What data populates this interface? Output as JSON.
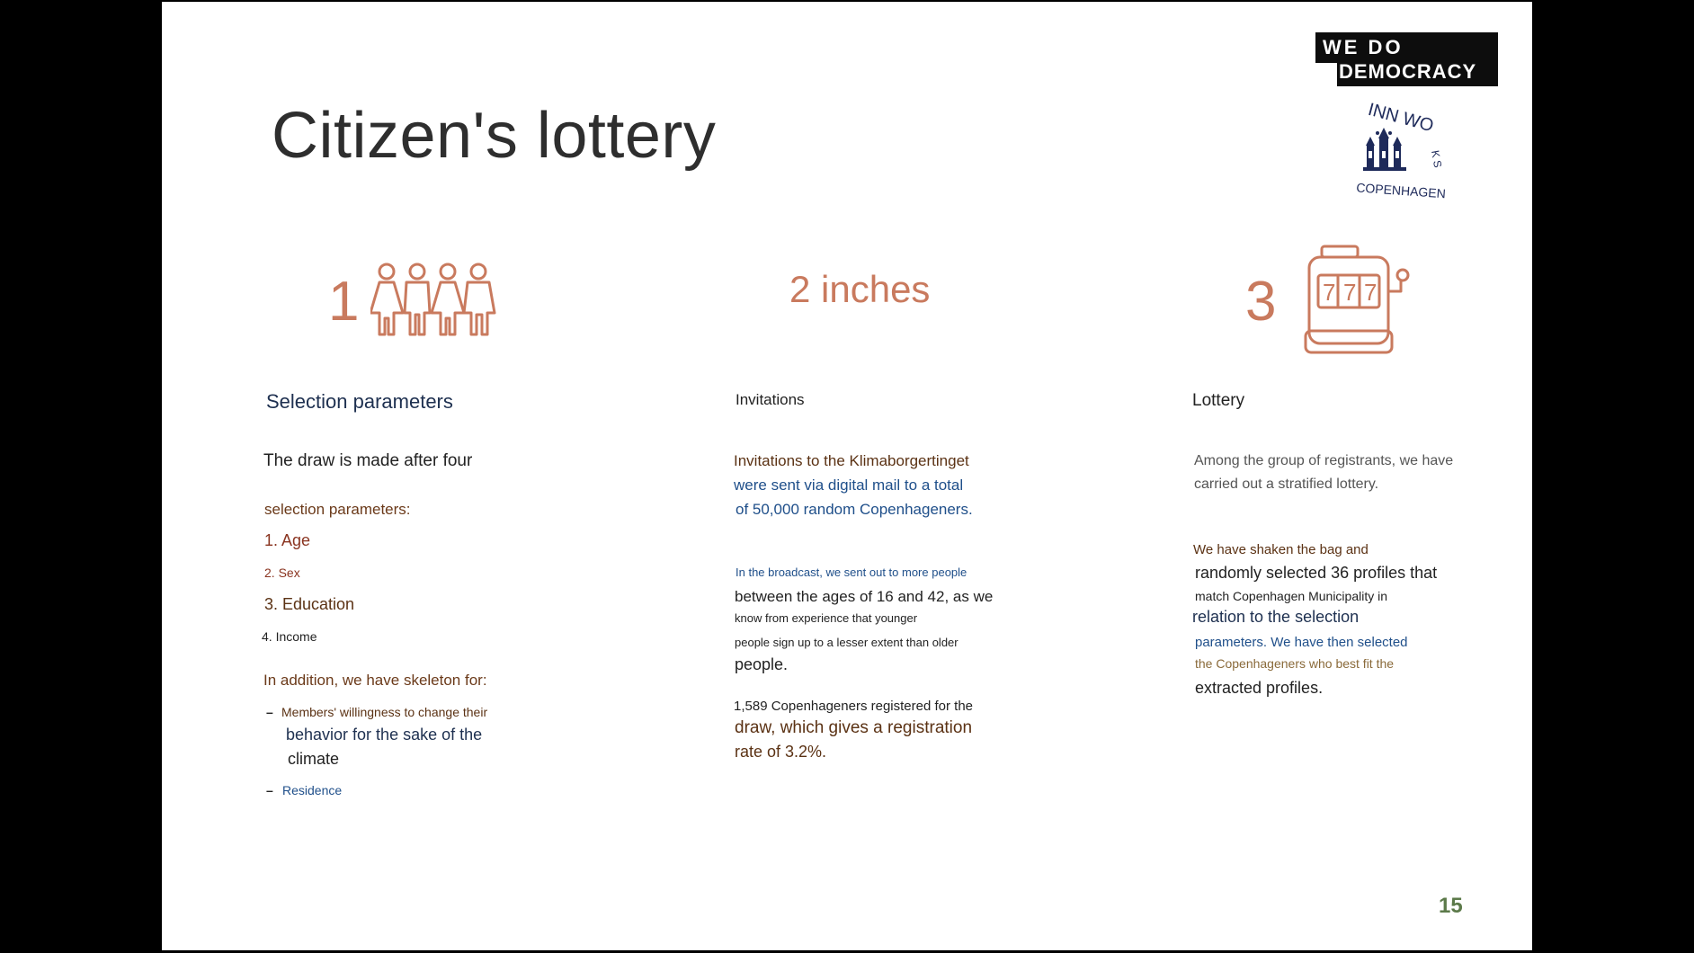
{
  "title": "Citizen's lottery",
  "logo": {
    "line1": "WE  DO",
    "line2": "DEMOCRACY",
    "seal_top": "INN WO",
    "seal_side": "K S",
    "seal_bottom": "COPENHAGEN"
  },
  "steps": {
    "one": {
      "number": "1",
      "icon": "people-group-icon"
    },
    "two": {
      "number": "2 inches"
    },
    "three": {
      "number": "3",
      "icon": "slot-machine-icon",
      "reels": [
        "7",
        "7",
        "7"
      ]
    }
  },
  "col1": {
    "heading": "Selection parameters",
    "intro": "The draw is made after four",
    "params_label": "selection parameters:",
    "items": [
      "1. Age",
      "2. Sex",
      "3. Education",
      "4. Income"
    ],
    "addition_label": "In addition, we have skeleton for:",
    "bullet1_line1": "Members' willingness to change their",
    "bullet1_line2": "behavior for the sake of the",
    "bullet1_line3": "climate",
    "bullet2": "Residence",
    "dash": "–"
  },
  "col2": {
    "heading": "Invitations",
    "p1_line1": "Invitations to the Klimaborgertinget",
    "p1_line2": "were sent via digital mail to a total",
    "p1_line3": "of 50,000 random Copenhageners.",
    "p2_line1": "In the broadcast, we sent out to more people",
    "p2_line2": "between the ages of 16 and 42, as we",
    "p2_line3": "know from experience that younger",
    "p2_line4": "people sign up to a lesser extent than older",
    "p2_line5": "people.",
    "p3_line1": "1,589 Copenhageners registered for the",
    "p3_line2": "draw, which gives a registration",
    "p3_line3": "rate of 3.2%."
  },
  "col3": {
    "heading": "Lottery",
    "p1_line1": "Among the group of registrants, we have",
    "p1_line2": "carried out a stratified lottery.",
    "p2_line1": "We have shaken the bag and",
    "p2_line2": "randomly selected 36 profiles that",
    "p2_line3": "match Copenhagen Municipality in",
    "p2_line4": "relation to the selection",
    "p2_line5": "parameters. We have then selected",
    "p2_line6": "the Copenhageners who best fit the",
    "p2_line7": "extracted profiles."
  },
  "page_number": "15",
  "colors": {
    "accent": "#c97a5e",
    "navy": "#1e3050",
    "page_number": "#5c7a4a"
  }
}
